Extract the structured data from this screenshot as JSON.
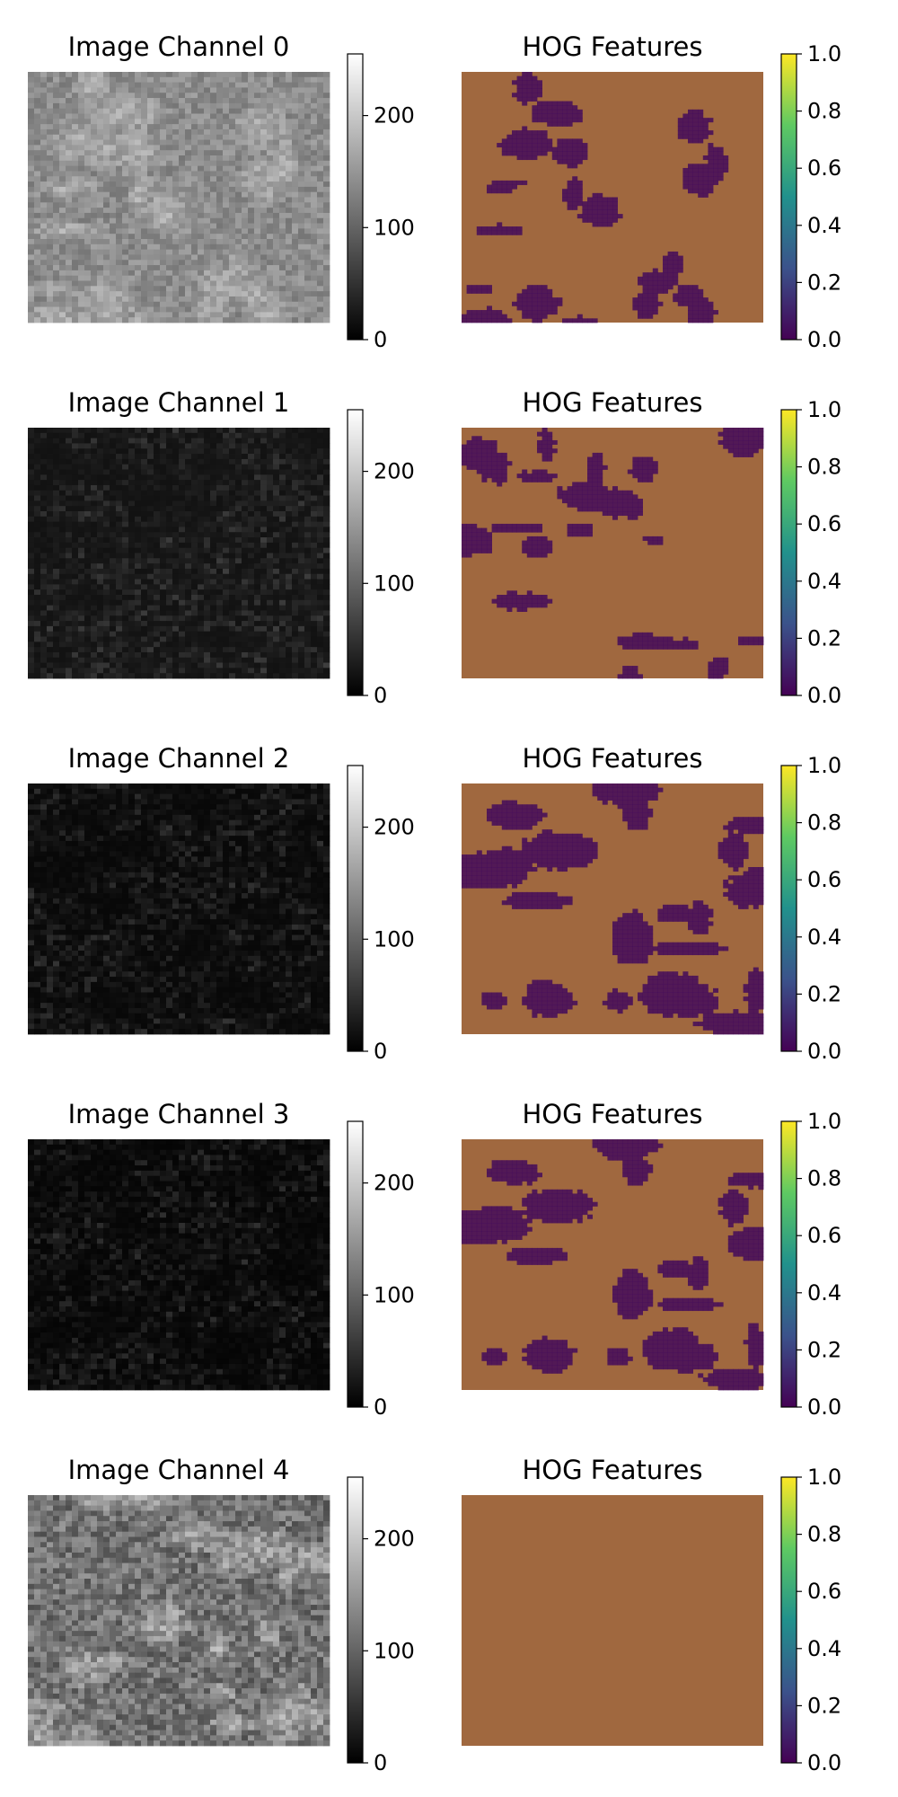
{
  "figure": {
    "rows": [
      {
        "image_panel": {
          "title": "Image Channel 0",
          "colormap": "gray",
          "base_level": 0.55,
          "pattern": "smooth"
        },
        "hog_panel": {
          "title": "HOG Features",
          "colormap": "viridis",
          "overlay_color": "#a0683f",
          "dark_fraction": 0.22
        }
      },
      {
        "image_panel": {
          "title": "Image Channel 1",
          "colormap": "gray",
          "base_level": 0.07,
          "pattern": "speckle"
        },
        "hog_panel": {
          "title": "HOG Features",
          "colormap": "viridis",
          "overlay_color": "#a0683f",
          "dark_fraction": 0.22
        }
      },
      {
        "image_panel": {
          "title": "Image Channel 2",
          "colormap": "gray",
          "base_level": 0.03,
          "pattern": "speckle"
        },
        "hog_panel": {
          "title": "HOG Features",
          "colormap": "viridis",
          "overlay_color": "#a0683f",
          "dark_fraction": 0.45
        }
      },
      {
        "image_panel": {
          "title": "Image Channel 3",
          "colormap": "gray",
          "base_level": 0.02,
          "pattern": "speckle"
        },
        "hog_panel": {
          "title": "HOG Features",
          "colormap": "viridis",
          "overlay_color": "#a0683f",
          "dark_fraction": 0.38
        }
      },
      {
        "image_panel": {
          "title": "Image Channel 4",
          "colormap": "gray",
          "base_level": 0.45,
          "pattern": "cells"
        },
        "hog_panel": {
          "title": "HOG Features",
          "colormap": "viridis",
          "overlay_color": "#a0683f",
          "dark_fraction": 0.0
        }
      }
    ],
    "gray_colorbar": {
      "colors": [
        "#000000",
        "#ffffff"
      ],
      "ticks": [
        "0",
        "100",
        "200"
      ],
      "tick_values": [
        0,
        100,
        200
      ],
      "range": [
        0,
        255
      ]
    },
    "viridis_colorbar": {
      "colors": [
        "#440154",
        "#3b528b",
        "#21918c",
        "#5ec962",
        "#fde725"
      ],
      "ticks": [
        "0.0",
        "0.2",
        "0.4",
        "0.6",
        "0.8",
        "1.0"
      ],
      "tick_values": [
        0,
        0.2,
        0.4,
        0.6,
        0.8,
        1.0
      ],
      "range": [
        0,
        1
      ]
    },
    "dark_overlay_color": "#440c5a"
  }
}
